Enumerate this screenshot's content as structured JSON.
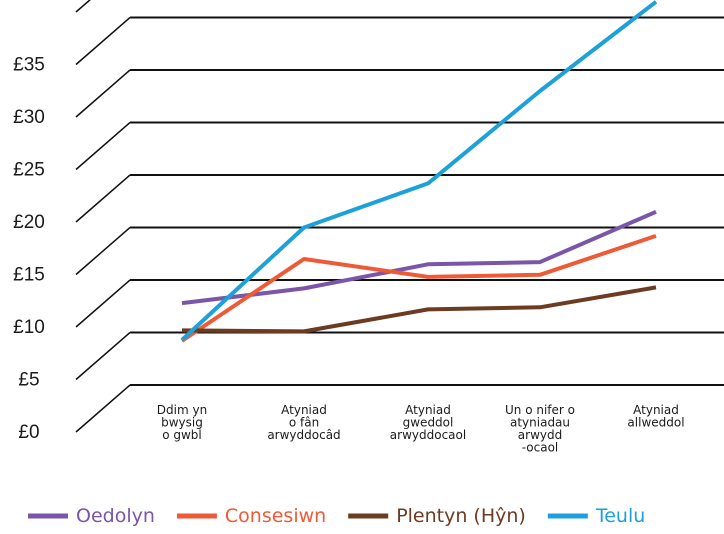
{
  "chart_data": {
    "type": "line",
    "title": "",
    "xlabel": "",
    "ylabel": "",
    "ylim": [
      0,
      35
    ],
    "grid": true,
    "legend_position": "bottom",
    "y_ticks": [
      "£0",
      "£5",
      "£10",
      "£15",
      "£20",
      "£25",
      "£30",
      "£35"
    ],
    "y_tick_values": [
      0,
      5,
      10,
      15,
      20,
      25,
      30,
      35
    ],
    "categories": [
      [
        "Ddim yn",
        "bwysig",
        "o gwbl"
      ],
      [
        "Atyniad",
        "o fân",
        "arwyddocâd"
      ],
      [
        "Atyniad",
        "gweddol",
        "arwyddocaol"
      ],
      [
        "Un o nifer o",
        "atyniadau",
        "arwydd",
        "-ocaol"
      ],
      [
        "Atyniad",
        "allweddol"
      ]
    ],
    "series": [
      {
        "name": "Oedolyn",
        "color": "#7a55a8",
        "values": [
          7.8,
          9.2,
          11.5,
          11.7,
          16.5
        ]
      },
      {
        "name": "Consesiwn",
        "color": "#ef5a36",
        "values": [
          4.2,
          12.0,
          10.3,
          10.5,
          14.2
        ]
      },
      {
        "name": "Plentyn (Hŷn)",
        "color": "#6b3b22",
        "values": [
          5.2,
          5.1,
          7.2,
          7.4,
          9.3
        ]
      },
      {
        "name": "Teulu",
        "color": "#1da1d8",
        "values": [
          4.3,
          15.0,
          19.2,
          28.0,
          36.5
        ]
      }
    ]
  }
}
